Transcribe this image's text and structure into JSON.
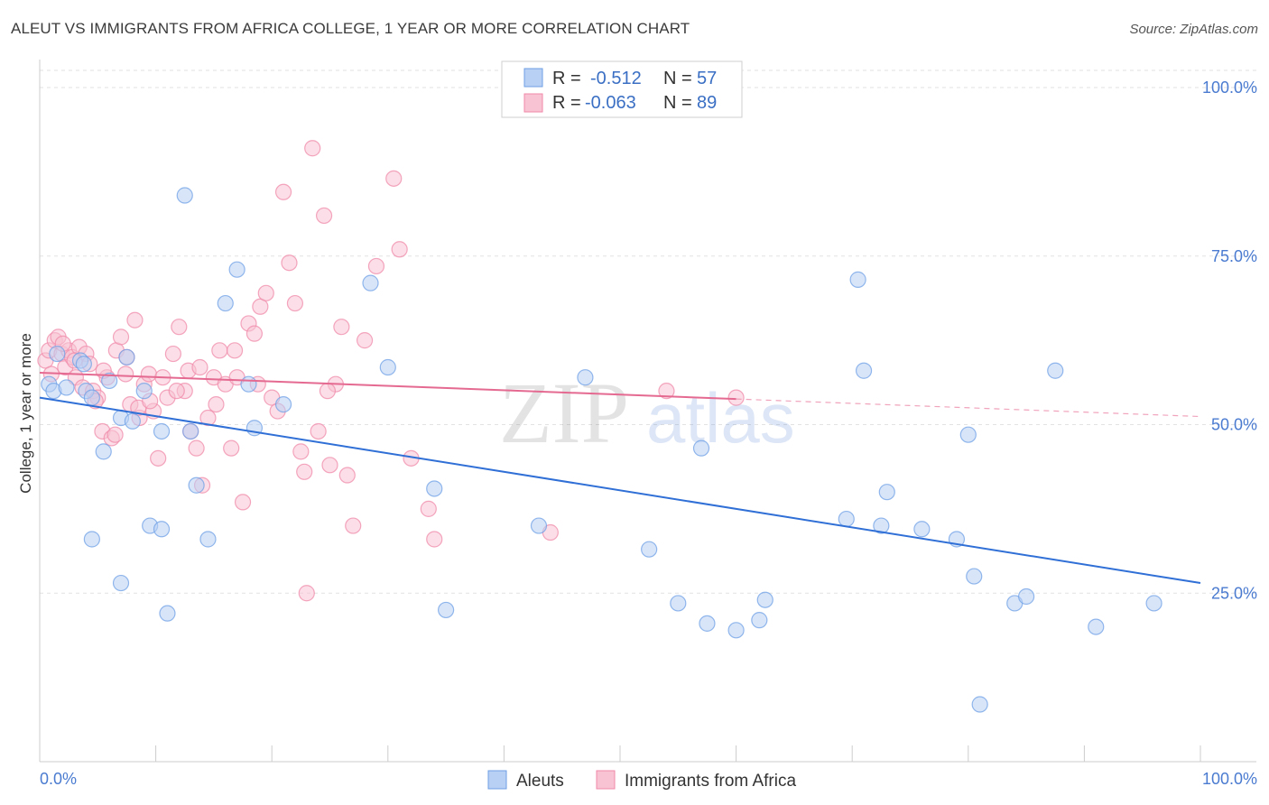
{
  "title": "ALEUT VS IMMIGRANTS FROM AFRICA COLLEGE, 1 YEAR OR MORE CORRELATION CHART",
  "source": "Source: ZipAtlas.com",
  "watermark": {
    "zip": "ZIP",
    "atlas": "atlas"
  },
  "stats": [
    {
      "r_label": "R =",
      "r_value": "-0.512",
      "n_label": "N =",
      "n_value": "57",
      "color": "#6fa0e6"
    },
    {
      "r_label": "R =",
      "r_value": "-0.063",
      "n_label": "N =",
      "n_value": "89",
      "color": "#f08aa9"
    }
  ],
  "chart_data": {
    "type": "scatter",
    "title": "ALEUT VS IMMIGRANTS FROM AFRICA COLLEGE, 1 YEAR OR MORE CORRELATION CHART",
    "xlabel": "",
    "ylabel": "College, 1 year or more",
    "xlim": [
      0,
      100
    ],
    "ylim": [
      0,
      105
    ],
    "x_tick_labels": [
      "0.0%",
      "100.0%"
    ],
    "y_ticks": [
      25,
      50,
      75,
      100
    ],
    "y_tick_labels": [
      "25.0%",
      "50.0%",
      "75.0%",
      "100.0%"
    ],
    "grid": true,
    "legend_position": "bottom-center",
    "series": [
      {
        "name": "Aleuts",
        "color": "#6fa0e6",
        "fill": "#b8d0f4",
        "trend": {
          "x0": 0,
          "y0": 54.0,
          "x1": 100,
          "y1": 26.5,
          "dashed_from": null
        },
        "points": [
          [
            0.8,
            56
          ],
          [
            1.2,
            55
          ],
          [
            2.3,
            55.5
          ],
          [
            3.5,
            59.5
          ],
          [
            3.8,
            59
          ],
          [
            4.0,
            55
          ],
          [
            4.5,
            54
          ],
          [
            5.5,
            46
          ],
          [
            6.0,
            56.5
          ],
          [
            7.0,
            51
          ],
          [
            7.5,
            60
          ],
          [
            8.0,
            50.5
          ],
          [
            9.0,
            55
          ],
          [
            9.5,
            35
          ],
          [
            10.5,
            49
          ],
          [
            11.0,
            22
          ],
          [
            12.5,
            84
          ],
          [
            13.0,
            49
          ],
          [
            13.5,
            41
          ],
          [
            14.5,
            33
          ],
          [
            16.0,
            68
          ],
          [
            17.0,
            73
          ],
          [
            18.0,
            56
          ],
          [
            18.5,
            49.5
          ],
          [
            21.0,
            53
          ],
          [
            28.5,
            71
          ],
          [
            30.0,
            58.5
          ],
          [
            34.0,
            40.5
          ],
          [
            35.0,
            22.5
          ],
          [
            43.0,
            35
          ],
          [
            47.0,
            57
          ],
          [
            52.5,
            31.5
          ],
          [
            55.0,
            23.5
          ],
          [
            57.0,
            46.5
          ],
          [
            57.5,
            20.5
          ],
          [
            60.0,
            19.5
          ],
          [
            62.0,
            21
          ],
          [
            62.5,
            24
          ],
          [
            69.5,
            36
          ],
          [
            70.5,
            71.5
          ],
          [
            71.0,
            58
          ],
          [
            72.5,
            35
          ],
          [
            73.0,
            40
          ],
          [
            76.0,
            34.5
          ],
          [
            79.0,
            33
          ],
          [
            80.0,
            48.5
          ],
          [
            80.5,
            27.5
          ],
          [
            81.0,
            8.5
          ],
          [
            84.0,
            23.5
          ],
          [
            85.0,
            24.5
          ],
          [
            87.5,
            58
          ],
          [
            91.0,
            20
          ],
          [
            96.0,
            23.5
          ],
          [
            1.5,
            60.5
          ],
          [
            7.0,
            26.5
          ],
          [
            10.5,
            34.5
          ],
          [
            4.5,
            33
          ]
        ]
      },
      {
        "name": "Immigrants from Africa",
        "color": "#f08aa9",
        "fill": "#f8c3d3",
        "trend": {
          "x0": 0,
          "y0": 57.7,
          "x1": 60,
          "y1": 53.8,
          "dashed_to": 100,
          "dashed_y1": 51.2
        },
        "points": [
          [
            0.5,
            59.5
          ],
          [
            0.8,
            61
          ],
          [
            1.0,
            57.5
          ],
          [
            1.3,
            62.5
          ],
          [
            1.6,
            63
          ],
          [
            1.9,
            60.5
          ],
          [
            2.2,
            58.5
          ],
          [
            2.5,
            61
          ],
          [
            2.8,
            60
          ],
          [
            3.1,
            57
          ],
          [
            3.4,
            61.5
          ],
          [
            3.7,
            55.5
          ],
          [
            4.0,
            60.5
          ],
          [
            4.3,
            59
          ],
          [
            4.6,
            55
          ],
          [
            5.0,
            54
          ],
          [
            5.4,
            49
          ],
          [
            5.8,
            57
          ],
          [
            6.2,
            48
          ],
          [
            6.6,
            61
          ],
          [
            7.0,
            63
          ],
          [
            7.4,
            57.5
          ],
          [
            7.8,
            53
          ],
          [
            8.2,
            65.5
          ],
          [
            8.6,
            51
          ],
          [
            9.0,
            56
          ],
          [
            9.4,
            57.5
          ],
          [
            9.8,
            52
          ],
          [
            10.2,
            45
          ],
          [
            10.6,
            57
          ],
          [
            11.0,
            54
          ],
          [
            11.5,
            60.5
          ],
          [
            12.0,
            64.5
          ],
          [
            12.5,
            55
          ],
          [
            13.0,
            49
          ],
          [
            13.5,
            46.5
          ],
          [
            14.0,
            41
          ],
          [
            14.5,
            51
          ],
          [
            15.0,
            57
          ],
          [
            15.5,
            61
          ],
          [
            16.0,
            56
          ],
          [
            16.5,
            46.5
          ],
          [
            17.0,
            57
          ],
          [
            17.5,
            38.5
          ],
          [
            18.0,
            65
          ],
          [
            18.5,
            63.5
          ],
          [
            19.0,
            67.5
          ],
          [
            19.5,
            69.5
          ],
          [
            20.0,
            54
          ],
          [
            20.5,
            52
          ],
          [
            21.0,
            84.5
          ],
          [
            21.5,
            74
          ],
          [
            22.0,
            68
          ],
          [
            22.5,
            46
          ],
          [
            23.0,
            25
          ],
          [
            23.5,
            91
          ],
          [
            24.0,
            49
          ],
          [
            24.5,
            81
          ],
          [
            25.0,
            44
          ],
          [
            25.5,
            56
          ],
          [
            26.0,
            64.5
          ],
          [
            26.5,
            42.5
          ],
          [
            27.0,
            35
          ],
          [
            28.0,
            62.5
          ],
          [
            29.0,
            73.5
          ],
          [
            30.5,
            86.5
          ],
          [
            31.0,
            76
          ],
          [
            32.0,
            45
          ],
          [
            33.5,
            37.5
          ],
          [
            34.0,
            33
          ],
          [
            44.0,
            34
          ],
          [
            54.0,
            55
          ],
          [
            60.0,
            54
          ],
          [
            6.5,
            48.5
          ],
          [
            8.5,
            52.5
          ],
          [
            12.8,
            58
          ],
          [
            15.2,
            53
          ],
          [
            16.8,
            61
          ],
          [
            18.8,
            56
          ],
          [
            2.0,
            62
          ],
          [
            3.0,
            59.5
          ],
          [
            4.8,
            53.5
          ],
          [
            5.5,
            58
          ],
          [
            7.5,
            60
          ],
          [
            9.5,
            53.5
          ],
          [
            11.8,
            55
          ],
          [
            13.8,
            58.5
          ],
          [
            22.8,
            43
          ],
          [
            24.8,
            55
          ]
        ]
      }
    ]
  },
  "legend": [
    {
      "label": "Aleuts",
      "color": "#6fa0e6",
      "fill": "#b8d0f4"
    },
    {
      "label": "Immigrants from Africa",
      "color": "#f08aa9",
      "fill": "#f8c3d3"
    }
  ]
}
